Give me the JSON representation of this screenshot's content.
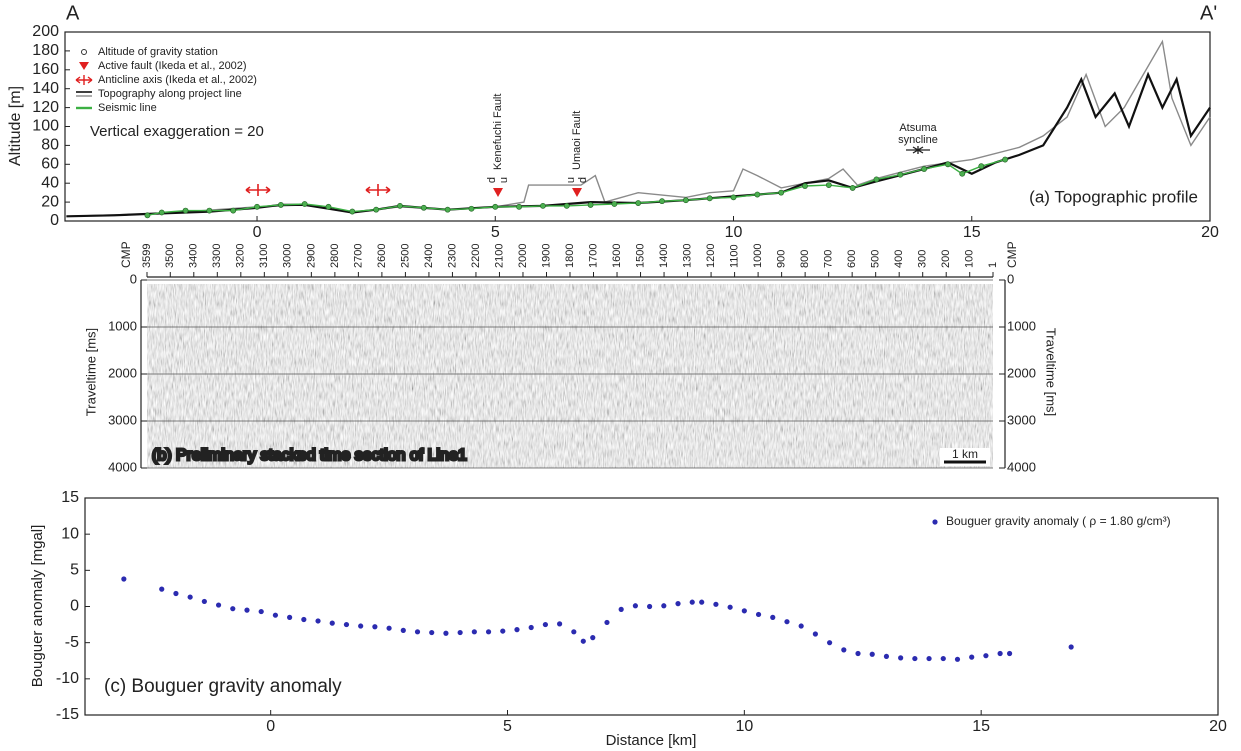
{
  "chart_data": [
    {
      "type": "line",
      "title": "(a) Topographic profile",
      "ylabel": "Altitude [m]",
      "end_labels": [
        "A",
        "A'"
      ],
      "note": "Vertical exaggeration = 20",
      "legend": [
        "Altitude of gravity station",
        "Active fault (Ikeda et al., 2002)",
        "Anticline axis (Ikeda et al., 2002)",
        "Topography along project line",
        "Seismic line"
      ],
      "faults": [
        "Kenefuchi Fault",
        "Umaoi Fault"
      ],
      "throw_labels": [
        "d",
        "u",
        "u",
        "d"
      ],
      "syncline": [
        "Atsuma",
        "syncline"
      ],
      "xlim": [
        -4.03,
        20
      ],
      "xticks": [
        0,
        5,
        10,
        15,
        20
      ],
      "ylim": [
        0,
        200
      ],
      "yticks": [
        0,
        20,
        40,
        60,
        80,
        100,
        120,
        140,
        160,
        180,
        200
      ],
      "series": [
        {
          "color": "#8a8a8a",
          "x": [
            -4,
            -2,
            0,
            1,
            2,
            3,
            4,
            5,
            5.6,
            5.7,
            6.8,
            7.1,
            7.3,
            8,
            9,
            9.5,
            10,
            10.2,
            10.5,
            11,
            12,
            12.3,
            12.6,
            13,
            14,
            15,
            16,
            16.5,
            17,
            17.4,
            17.8,
            18.2,
            18.6,
            19,
            19.2,
            19.6,
            20
          ],
          "values": [
            5,
            8,
            15,
            17,
            9,
            15,
            12,
            15,
            20,
            38,
            38,
            48,
            20,
            30,
            25,
            30,
            32,
            55,
            48,
            35,
            45,
            55,
            38,
            45,
            58,
            65,
            78,
            90,
            110,
            155,
            100,
            120,
            155,
            190,
            130,
            80,
            110
          ]
        },
        {
          "name": "Topography along project line",
          "color": "#111111",
          "x": [
            -4,
            -3,
            -2,
            -1,
            0,
            0.5,
            1,
            1.5,
            2,
            2.5,
            3,
            3.5,
            4,
            5,
            6,
            7,
            8,
            9,
            10,
            11,
            11.5,
            12,
            12.5,
            13,
            14,
            14.5,
            15,
            15.5,
            16,
            16.5,
            17,
            17.3,
            17.6,
            18,
            18.3,
            18.7,
            19,
            19.3,
            19.6,
            20
          ],
          "values": [
            5,
            6,
            8,
            10,
            14,
            17,
            17,
            13,
            9,
            12,
            16,
            14,
            12,
            15,
            16,
            20,
            19,
            22,
            26,
            30,
            40,
            43,
            35,
            42,
            55,
            62,
            50,
            62,
            70,
            80,
            120,
            150,
            110,
            135,
            100,
            155,
            120,
            150,
            90,
            120
          ]
        },
        {
          "name": "Seismic line",
          "color": "#3cb043",
          "x": [
            -2.3,
            -2,
            -1.5,
            -1,
            -0.5,
            0,
            0.5,
            1,
            1.5,
            2,
            2.5,
            3,
            3.5,
            4,
            4.5,
            5,
            5.5,
            6,
            6.5,
            7,
            7.5,
            8,
            8.5,
            9,
            9.5,
            10,
            10.5,
            11,
            11.5,
            12,
            12.5,
            13,
            13.5,
            14,
            14.5,
            14.8,
            15.2,
            15.7
          ],
          "values": [
            6,
            9,
            11,
            11,
            11,
            15,
            17,
            18,
            15,
            10,
            12,
            16,
            14,
            12,
            13,
            15,
            15,
            16,
            16,
            17,
            18,
            19,
            21,
            22,
            24,
            25,
            28,
            30,
            37,
            38,
            35,
            44,
            49,
            55,
            60,
            50,
            58,
            65
          ]
        }
      ]
    },
    {
      "type": "section",
      "title": "(b) Preliminary stacked time section of Line1",
      "xlabel": "CMP",
      "ylabel": "Traveltime [ms]",
      "scale_bar": "1 km",
      "xlim": [
        3599,
        1
      ],
      "xticks": [
        3599,
        3500,
        3400,
        3300,
        3200,
        3100,
        3000,
        2900,
        2800,
        2700,
        2600,
        2500,
        2400,
        2300,
        2200,
        2100,
        2000,
        1900,
        1800,
        1700,
        1600,
        1500,
        1400,
        1300,
        1200,
        1100,
        1000,
        900,
        800,
        700,
        600,
        500,
        400,
        300,
        200,
        100,
        1
      ],
      "ylim": [
        4000,
        0
      ],
      "yticks": [
        0,
        1000,
        2000,
        3000,
        4000
      ]
    },
    {
      "type": "scatter",
      "title": "(c) Bouguer gravity anomaly",
      "xlabel": "Distance [km]",
      "ylabel": "Bouguer anomaly [mgal]",
      "xlim": [
        -3.92,
        20
      ],
      "xticks": [
        0,
        5,
        10,
        15,
        20
      ],
      "ylim": [
        -15,
        15
      ],
      "yticks": [
        -15,
        -10,
        -5,
        0,
        5,
        10,
        15
      ],
      "series": [
        {
          "name": "Bouguer gravity anomaly ( ρ = 1.80 g/cm³)",
          "color": "#2b2bb0",
          "x": [
            -3.1,
            -2.3,
            -2.0,
            -1.7,
            -1.4,
            -1.1,
            -0.8,
            -0.5,
            -0.2,
            0.1,
            0.4,
            0.7,
            1.0,
            1.3,
            1.6,
            1.9,
            2.2,
            2.5,
            2.8,
            3.1,
            3.4,
            3.7,
            4.0,
            4.3,
            4.6,
            4.9,
            5.2,
            5.5,
            5.8,
            6.1,
            6.4,
            6.6,
            6.8,
            7.1,
            7.4,
            7.7,
            8.0,
            8.3,
            8.6,
            8.9,
            9.1,
            9.4,
            9.7,
            10.0,
            10.3,
            10.6,
            10.9,
            11.2,
            11.5,
            11.8,
            12.1,
            12.4,
            12.7,
            13.0,
            13.3,
            13.6,
            13.9,
            14.2,
            14.5,
            14.8,
            15.1,
            15.4,
            15.6,
            16.9
          ],
          "values": [
            3.8,
            2.4,
            1.8,
            1.3,
            0.7,
            0.2,
            -0.3,
            -0.5,
            -0.7,
            -1.2,
            -1.5,
            -1.8,
            -2.0,
            -2.3,
            -2.5,
            -2.7,
            -2.8,
            -3.0,
            -3.3,
            -3.5,
            -3.6,
            -3.7,
            -3.6,
            -3.5,
            -3.5,
            -3.4,
            -3.2,
            -2.9,
            -2.5,
            -2.4,
            -3.5,
            -4.8,
            -4.3,
            -2.2,
            -0.4,
            0.1,
            0.0,
            0.1,
            0.4,
            0.6,
            0.6,
            0.3,
            -0.1,
            -0.6,
            -1.1,
            -1.5,
            -2.1,
            -2.7,
            -3.8,
            -5.0,
            -6.0,
            -6.5,
            -6.6,
            -6.9,
            -7.1,
            -7.2,
            -7.2,
            -7.2,
            -7.3,
            -7.0,
            -6.8,
            -6.5,
            -6.5,
            -5.6
          ]
        }
      ]
    }
  ]
}
